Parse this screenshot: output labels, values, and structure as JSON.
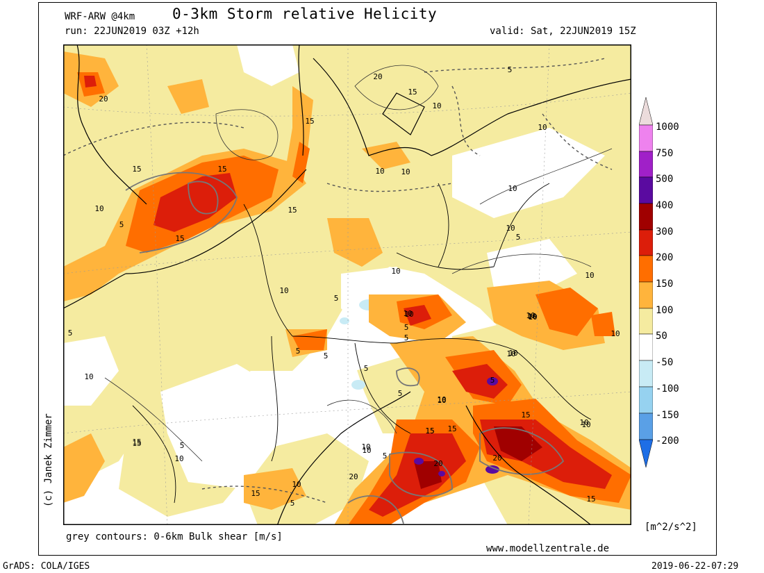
{
  "header": {
    "model": "WRF-ARW @4km",
    "title": "0-3km Storm relative Helicity",
    "run": "run: 22JUN2019 03Z +12h",
    "valid": "valid: Sat, 22JUN2019 15Z"
  },
  "footer": {
    "shear_note": "grey contours: 0-6km Bulk shear [m/s]",
    "website": "www.modellzentrale.de",
    "grads": "GrADS: COLA/IGES",
    "timestamp": "2019-06-22-07:29",
    "copyright": "(c) Janek Zimmer"
  },
  "colorbar": {
    "units": "[m^2/s^2]",
    "labels": [
      "1000",
      "750",
      "500",
      "400",
      "300",
      "200",
      "150",
      "100",
      "50",
      "-50",
      "-100",
      "-150",
      "-200"
    ],
    "colors": [
      "#ecdcdc",
      "#ee82ee",
      "#a020c8",
      "#5a0aa0",
      "#a00000",
      "#dc1e0a",
      "#ff6e00",
      "#ffb43c",
      "#f5eba0",
      "#ffffff",
      "#c8ebf5",
      "#96d2f0",
      "#5aa0e6",
      "#1e6ee6"
    ]
  },
  "map": {
    "contour_labels": [
      "20",
      "15",
      "10",
      "5",
      "20",
      "15",
      "15",
      "10",
      "5",
      "10",
      "10",
      "15",
      "15",
      "15",
      "10",
      "10",
      "5",
      "10",
      "10",
      "5",
      "10",
      "5",
      "10",
      "10",
      "10",
      "5",
      "10",
      "10",
      "10",
      "5",
      "5",
      "10",
      "15",
      "5",
      "10",
      "5",
      "10",
      "15",
      "15",
      "5",
      "20",
      "20",
      "15",
      "10",
      "5",
      "10",
      "5",
      "10",
      "10",
      "10",
      "15",
      "15",
      "15",
      "5",
      "20",
      "10",
      "5",
      "10",
      "15",
      "10",
      "10"
    ]
  }
}
